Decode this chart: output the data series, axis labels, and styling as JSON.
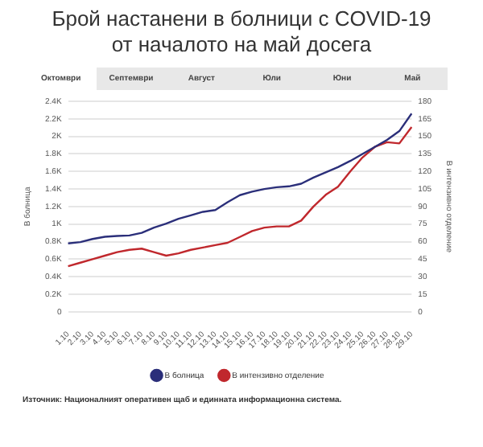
{
  "chart_data": {
    "type": "line",
    "title": "Брой настанени в болници с COVID-19",
    "subtitle": "от началото на май досега",
    "ylabel": "В болница",
    "y2label": "В интензивно отделение",
    "categories": [
      "1.10",
      "2.10",
      "3.10",
      "4.10",
      "5.10",
      "6.10",
      "7.10",
      "8.10",
      "9.10",
      "10.10",
      "11.10",
      "12.10",
      "13.10",
      "14.10",
      "15.10",
      "16.10",
      "17.10",
      "18.10",
      "19.10",
      "20.10",
      "21.10",
      "22.10",
      "23.10",
      "24.10",
      "25.10",
      "26.10",
      "27.10",
      "28.10",
      "29.10"
    ],
    "series": [
      {
        "name": "В болница",
        "color": "#2b2f7a",
        "values": [
          780,
          795,
          830,
          855,
          865,
          870,
          900,
          960,
          1005,
          1060,
          1100,
          1140,
          1160,
          1250,
          1330,
          1370,
          1400,
          1420,
          1430,
          1460,
          1530,
          1590,
          1650,
          1720,
          1800,
          1880,
          1960,
          2060,
          2260
        ]
      },
      {
        "name": "В интензивно отделение",
        "color": "#c0282d",
        "axis": "y2",
        "values": [
          39,
          42,
          45,
          48,
          51,
          53,
          54,
          51,
          48,
          50,
          53,
          55,
          57,
          59,
          64,
          69,
          72,
          73,
          73,
          78,
          90,
          100,
          107,
          120,
          132,
          141,
          145,
          144,
          158
        ]
      }
    ],
    "ylim": [
      0,
      2400
    ],
    "yticks": [
      0,
      {
        "value": 200,
        "label": "0.2K"
      },
      {
        "value": 400,
        "label": "0.4K"
      },
      {
        "value": 600,
        "label": "0.6K"
      },
      {
        "value": 800,
        "label": "0.8K"
      },
      {
        "value": 1000,
        "label": "1K"
      },
      {
        "value": 1200,
        "label": "1.2K"
      },
      {
        "value": 1400,
        "label": "1.4K"
      },
      {
        "value": 1600,
        "label": "1.6K"
      },
      {
        "value": 1800,
        "label": "1.8K"
      },
      {
        "value": 2000,
        "label": "2K"
      },
      {
        "value": 2200,
        "label": "2.2K"
      },
      {
        "value": 2400,
        "label": "2.4K"
      }
    ],
    "y2lim": [
      0,
      180
    ],
    "y2ticks": [
      0,
      15,
      30,
      45,
      60,
      75,
      90,
      105,
      120,
      135,
      150,
      165,
      180
    ],
    "grid": "y",
    "legend": "bottom",
    "annotations": [
      "Октомври",
      "Септември",
      "Август",
      "Юли",
      "Юни",
      "Май",
      "Източник: Националният оперативен щаб и единната информационна система."
    ]
  }
}
